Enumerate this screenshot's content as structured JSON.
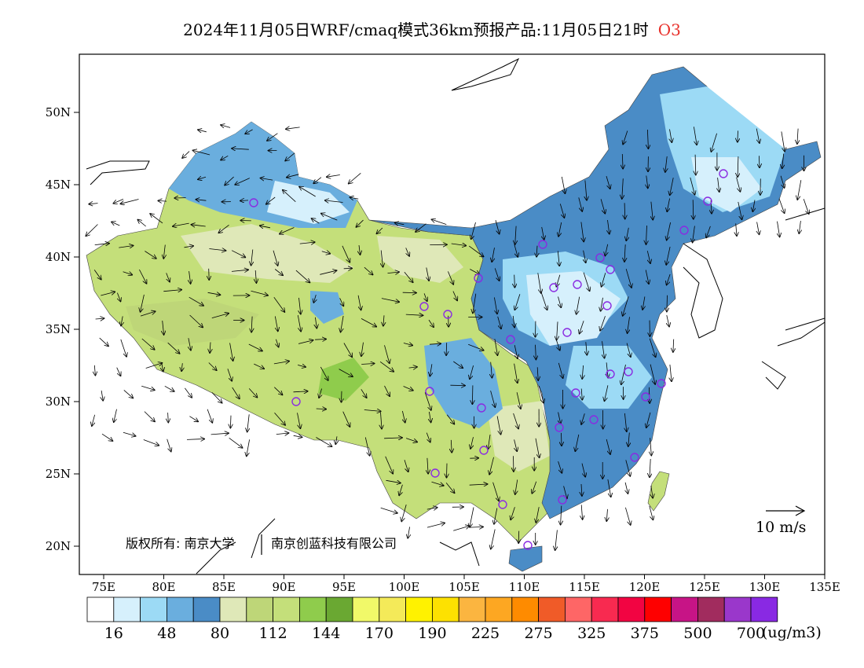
{
  "title": {
    "main": "2024年11月05日WRF/cmaq模式36km预报产品:11月05日21时",
    "species": "O3",
    "species_color": "#e8302a"
  },
  "axes": {
    "lon_labels": [
      "75E",
      "80E",
      "85E",
      "90E",
      "95E",
      "100E",
      "105E",
      "110E",
      "115E",
      "120E",
      "125E",
      "130E",
      "135E"
    ],
    "lat_labels": [
      "50N",
      "45N",
      "40N",
      "35N",
      "30N",
      "25N",
      "20N"
    ]
  },
  "copyright": {
    "left": "版权所有: 南京大学",
    "right": "南京创蓝科技有限公司"
  },
  "wind_reference": {
    "label": "10 m/s"
  },
  "colorbar": {
    "unit": "(ug/m3)",
    "colors": [
      "#ffffff",
      "#d6f0fc",
      "#9cdaf5",
      "#6aaede",
      "#4a8cc6",
      "#dfe8b8",
      "#bed678",
      "#c4df7a",
      "#8fcc4c",
      "#6aa832",
      "#f1f969",
      "#f4ea59",
      "#fff200",
      "#fde101",
      "#fbb540",
      "#fda722",
      "#fe8b00",
      "#f05b28",
      "#fe6666",
      "#f82a50",
      "#f20442",
      "#fe0000",
      "#c71486",
      "#a12c5e",
      "#9a37cb",
      "#8929e3"
    ],
    "labels": [
      "16",
      "48",
      "80",
      "112",
      "144",
      "170",
      "190",
      "225",
      "275",
      "325",
      "375",
      "500",
      "700"
    ]
  },
  "stations_color": "#8a2be2"
}
